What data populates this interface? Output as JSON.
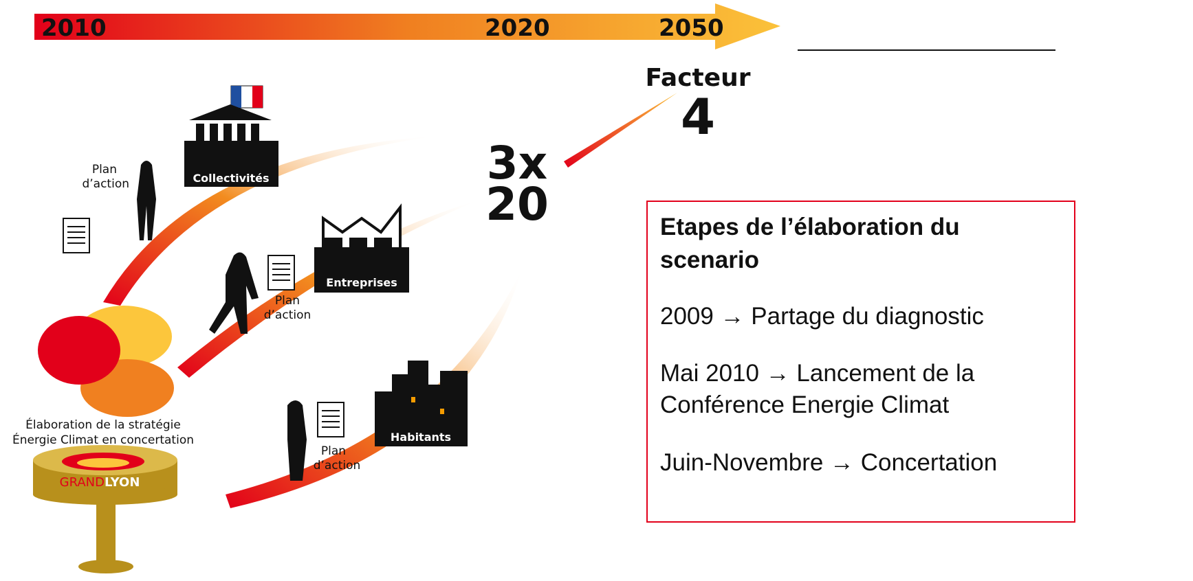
{
  "timeline": {
    "labels": [
      "2010",
      "2020",
      "2050"
    ]
  },
  "goals": {
    "factor_label": "Facteur",
    "factor_value": "4",
    "triple_top": "3x",
    "triple_bottom": "20"
  },
  "actors": [
    {
      "name": "Collectivités",
      "note": [
        "Plan",
        "d’action"
      ]
    },
    {
      "name": "Entreprises",
      "note": [
        "Plan",
        "d’action"
      ]
    },
    {
      "name": "Habitants",
      "note": [
        "Plan",
        "d’action"
      ]
    }
  ],
  "strategy": {
    "lines": [
      "Élaboration  de la stratégie",
      "Énergie Climat en concertation"
    ],
    "logo": [
      "GRAND",
      "LYON"
    ]
  },
  "steps_box": {
    "title": [
      "Etapes de l’élaboration du",
      "scenario"
    ],
    "items": [
      [
        "2009 → Partage du diagnostic"
      ],
      [
        "Mai 2010 → Lancement de la",
        "Conférence Energie Climat"
      ],
      [
        "Juin-Novembre → Concertation"
      ]
    ]
  }
}
